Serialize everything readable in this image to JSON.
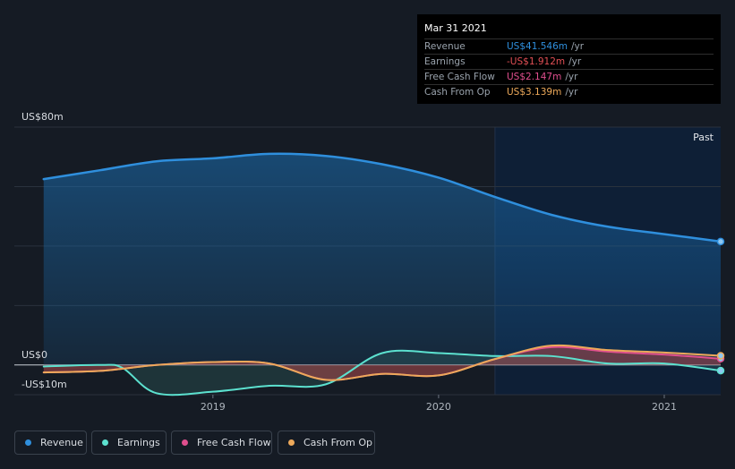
{
  "chart_data": {
    "type": "area",
    "y_axis": {
      "top_label": "US$80m",
      "zero_label": "US$0",
      "bottom_label": "-US$10m",
      "ylim": [
        -10,
        80
      ]
    },
    "x_ticks": [
      "2019",
      "2020",
      "2021"
    ],
    "x_tick_values": [
      2019.0,
      2020.0,
      2021.0
    ],
    "xlim": [
      2018.12,
      2021.25
    ],
    "past_start": 2020.25,
    "past_label": "Past",
    "series": [
      {
        "name": "Revenue",
        "color": "#2f8fdd",
        "x": [
          2018.25,
          2018.5,
          2018.75,
          2019.0,
          2019.25,
          2019.5,
          2019.75,
          2020.0,
          2020.25,
          2020.5,
          2020.75,
          2021.0,
          2021.25
        ],
        "values": [
          62.5,
          65.5,
          68.5,
          69.5,
          71.0,
          70.3,
          67.5,
          63.0,
          56.5,
          50.5,
          46.5,
          44.0,
          41.5
        ]
      },
      {
        "name": "Earnings",
        "color": "#5ce1cf",
        "x": [
          2018.25,
          2018.5,
          2018.6,
          2018.75,
          2019.0,
          2019.25,
          2019.5,
          2019.75,
          2020.0,
          2020.25,
          2020.5,
          2020.75,
          2021.0,
          2021.25
        ],
        "values": [
          -0.5,
          0,
          -1,
          -9.5,
          -9,
          -7,
          -6.5,
          4,
          4,
          3,
          3,
          0.5,
          0.5,
          -1.9
        ]
      },
      {
        "name": "Free Cash Flow",
        "color": "#e04f8e",
        "x": [
          2018.25,
          2018.5,
          2018.75,
          2019.0,
          2019.25,
          2019.5,
          2019.75,
          2020.0,
          2020.25,
          2020.5,
          2020.75,
          2021.0,
          2021.25
        ],
        "values": [
          -2.5,
          -2,
          0,
          1,
          0.5,
          -5,
          -3,
          -3.5,
          2,
          6,
          4.5,
          3.5,
          2.1
        ]
      },
      {
        "name": "Cash From Op",
        "color": "#eda95a",
        "x": [
          2018.25,
          2018.5,
          2018.75,
          2019.0,
          2019.25,
          2019.5,
          2019.75,
          2020.0,
          2020.25,
          2020.5,
          2020.75,
          2021.0,
          2021.25
        ],
        "values": [
          -2.5,
          -2,
          0,
          1,
          0.5,
          -5,
          -3,
          -3.5,
          2,
          6.5,
          5,
          4.2,
          3.1
        ]
      }
    ]
  },
  "tooltip": {
    "date": "Mar 31 2021",
    "rows": [
      {
        "label": "Revenue",
        "value": "US$41.546m",
        "unit": "/yr",
        "color": "#2f8fdd"
      },
      {
        "label": "Earnings",
        "value": "-US$1.912m",
        "unit": "/yr",
        "color": "#e24f55"
      },
      {
        "label": "Free Cash Flow",
        "value": "US$2.147m",
        "unit": "/yr",
        "color": "#e04f8e"
      },
      {
        "label": "Cash From Op",
        "value": "US$3.139m",
        "unit": "/yr",
        "color": "#eda95a"
      }
    ]
  },
  "legend": [
    {
      "label": "Revenue",
      "color": "#2f8fdd"
    },
    {
      "label": "Earnings",
      "color": "#5ce1cf"
    },
    {
      "label": "Free Cash Flow",
      "color": "#e04f8e"
    },
    {
      "label": "Cash From Op",
      "color": "#eda95a"
    }
  ]
}
